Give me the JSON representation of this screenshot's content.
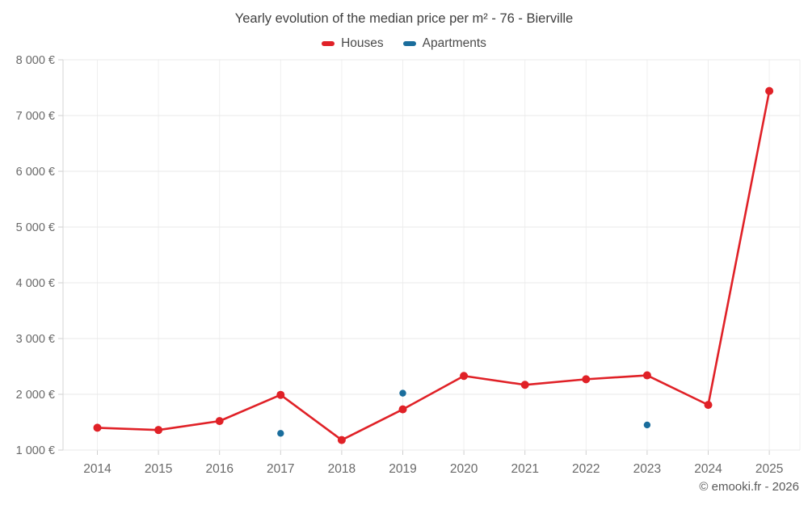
{
  "page": {
    "footer": "© emooki.fr - 2026"
  },
  "chart_data": {
    "type": "line",
    "title": "Yearly evolution of the median price per m² - 76 - Bierville",
    "categories": [
      "2014",
      "2015",
      "2016",
      "2017",
      "2018",
      "2019",
      "2020",
      "2021",
      "2022",
      "2023",
      "2024",
      "2025"
    ],
    "series": [
      {
        "name": "Houses",
        "color": "#e02127",
        "marker_radius": 5,
        "line": true,
        "values": [
          1400,
          1360,
          1520,
          1990,
          1180,
          1730,
          2330,
          2170,
          2270,
          2340,
          1810,
          7440
        ]
      },
      {
        "name": "Apartments",
        "color": "#1a6d9c",
        "marker_radius": 4.2,
        "line": false,
        "values": [
          null,
          null,
          null,
          1300,
          null,
          2020,
          null,
          null,
          null,
          1450,
          null,
          null
        ]
      }
    ],
    "ylim": [
      1000,
      8000
    ],
    "yticks": [
      {
        "value": 1000,
        "label": "1 000 €"
      },
      {
        "value": 2000,
        "label": "2 000 €"
      },
      {
        "value": 3000,
        "label": "3 000 €"
      },
      {
        "value": 4000,
        "label": "4 000 €"
      },
      {
        "value": 5000,
        "label": "5 000 €"
      },
      {
        "value": 6000,
        "label": "6 000 €"
      },
      {
        "value": 7000,
        "label": "7 000 €"
      },
      {
        "value": 8000,
        "label": "8 000 €"
      }
    ],
    "grid": true,
    "legend_position": "top"
  }
}
